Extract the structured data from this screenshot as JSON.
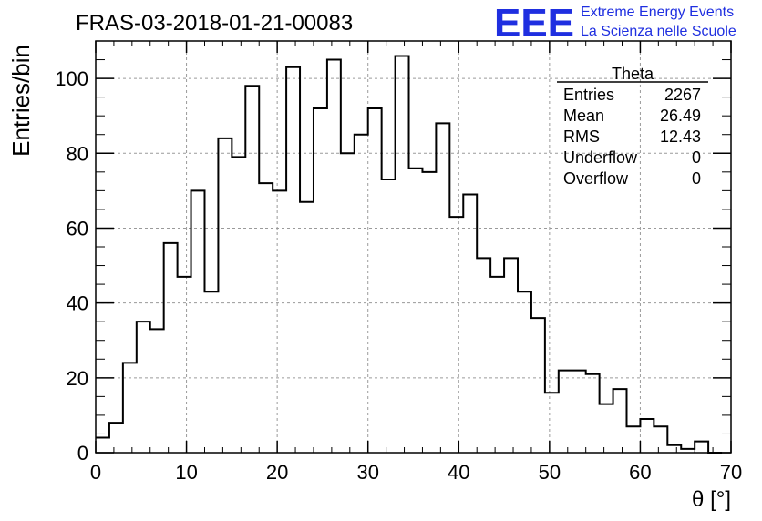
{
  "chart_data": {
    "type": "histogram",
    "title": "FRAS-03-2018-01-21-00083",
    "xlabel": "θ [°]",
    "ylabel": "Entries/bin",
    "xlim": [
      0,
      70
    ],
    "ylim": [
      0,
      110
    ],
    "x_ticks": [
      0,
      10,
      20,
      30,
      40,
      50,
      60,
      70
    ],
    "y_ticks": [
      0,
      20,
      40,
      60,
      80,
      100
    ],
    "grid": true,
    "bin_width": 1.5,
    "bin_start": 0,
    "values": [
      4,
      8,
      24,
      35,
      33,
      56,
      47,
      70,
      43,
      84,
      79,
      98,
      72,
      70,
      103,
      67,
      92,
      105,
      80,
      85,
      92,
      73,
      106,
      76,
      75,
      88,
      63,
      69,
      52,
      47,
      52,
      43,
      36,
      16,
      22,
      22,
      21,
      13,
      17,
      7,
      9,
      7,
      2,
      1,
      3,
      0
    ],
    "stats_box": {
      "name": "Theta",
      "rows": [
        {
          "label": "Entries",
          "value": "2267"
        },
        {
          "label": "Mean",
          "value": "26.49"
        },
        {
          "label": "RMS",
          "value": "12.43"
        },
        {
          "label": "Underflow",
          "value": "0"
        },
        {
          "label": "Overflow",
          "value": "0"
        }
      ]
    }
  },
  "logo": {
    "mark": "EEE",
    "line1": "Extreme Energy Events",
    "line2": "La Scienza nelle Scuole",
    "color": "#1f2fe0"
  }
}
